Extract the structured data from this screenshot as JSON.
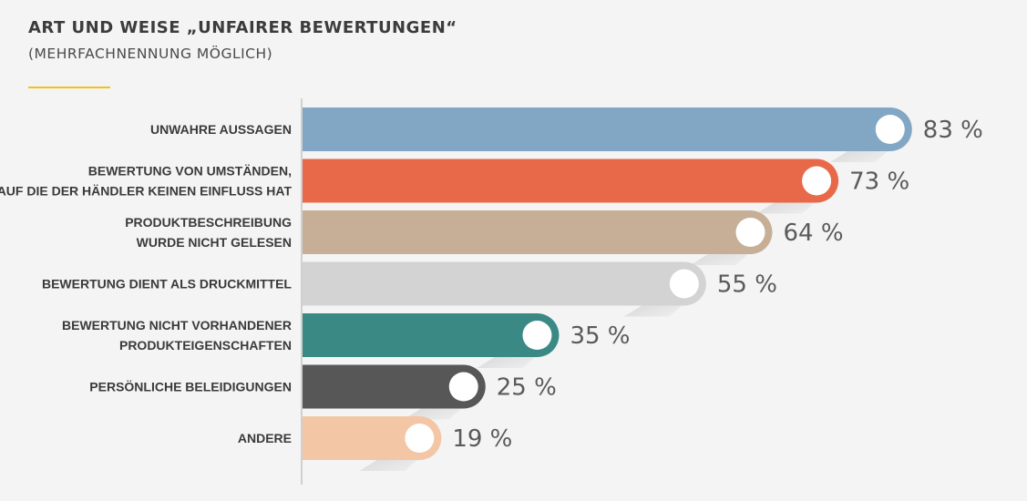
{
  "header": {
    "title": "ART UND WEISE „UNFAIRER BEWERTUNGEN“",
    "subtitle": "(MEHRFACHNENNUNG MÖGLICH)"
  },
  "colors": {
    "accent": "#f2c21b",
    "axis": "#d0d0d0"
  },
  "chart_data": {
    "type": "bar",
    "orientation": "horizontal",
    "title": "ART UND WEISE „UNFAIRER BEWERTUNGEN“",
    "subtitle": "(MEHRFACHNENNUNG MÖGLICH)",
    "xlim": [
      0,
      100
    ],
    "unit": "%",
    "grid": false,
    "bars": [
      {
        "category": [
          "UNWAHRE AUSSAGEN"
        ],
        "value": 83,
        "label": "83 %",
        "color": "#82a7c4"
      },
      {
        "category": [
          "BEWERTUNG VON UMSTÄNDEN,",
          "AUF DIE DER HÄNDLER KEINEN EINFLUSS HAT"
        ],
        "value": 73,
        "label": "73 %",
        "color": "#e8684a"
      },
      {
        "category": [
          "PRODUKTBESCHREIBUNG",
          "WURDE NICHT GELESEN"
        ],
        "value": 64,
        "label": "64 %",
        "color": "#c6af96"
      },
      {
        "category": [
          "BEWERTUNG DIENT ALS DRUCKMITTEL"
        ],
        "value": 55,
        "label": "55 %",
        "color": "#d2d3d2"
      },
      {
        "category": [
          "BEWERTUNG NICHT VORHANDENER",
          "PRODUKTEIGENSCHAFTEN"
        ],
        "value": 35,
        "label": "35 %",
        "color": "#3a8985"
      },
      {
        "category": [
          "PERSÖNLICHE BELEIDIGUNGEN"
        ],
        "value": 25,
        "label": "25 %",
        "color": "#575757"
      },
      {
        "category": [
          "ANDERE"
        ],
        "value": 19,
        "label": "19 %",
        "color": "#f3c6a5"
      }
    ]
  }
}
